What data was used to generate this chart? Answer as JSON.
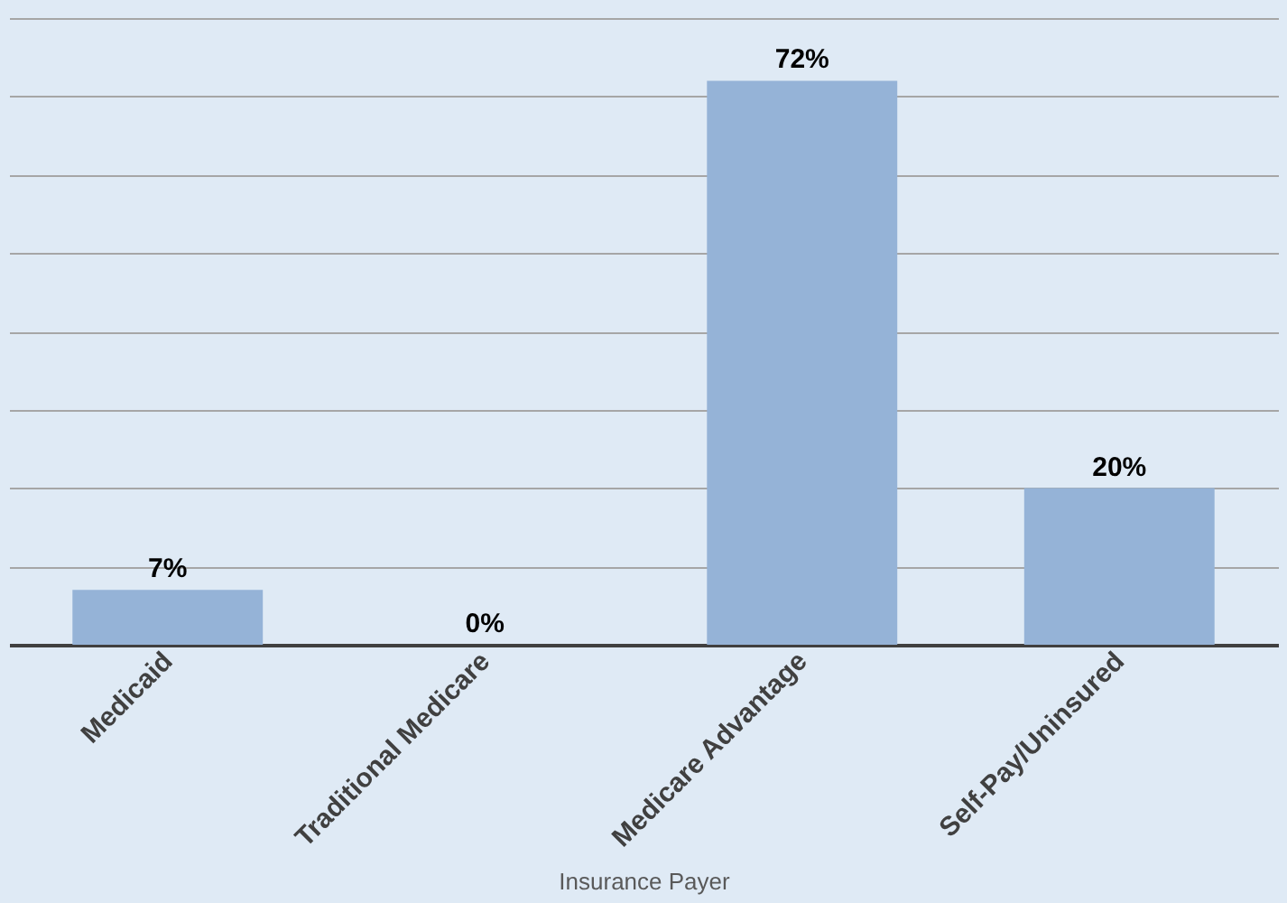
{
  "chart_data": {
    "type": "bar",
    "xlabel": "Insurance Payer",
    "categories": [
      "Medicaid",
      "Traditional Medicare",
      "Medicare Advantage",
      "Self-Pay/Uninsured"
    ],
    "values": [
      7,
      0,
      72,
      20
    ],
    "value_labels": [
      "7%",
      "0%",
      "72%",
      "20%"
    ],
    "color": "#95b3d7",
    "ylim": [
      0,
      80
    ],
    "yticks": [
      {
        "value": 0,
        "label": null
      },
      {
        "value": 10,
        "label": null
      },
      {
        "value": 20,
        "label": null
      },
      {
        "value": 30,
        "label": null
      },
      {
        "value": 40,
        "label": null
      },
      {
        "value": 50,
        "label": null
      },
      {
        "value": 60,
        "label": null
      },
      {
        "value": 70,
        "label": null
      },
      {
        "value": 80,
        "label": null
      }
    ],
    "grid": "y",
    "tick_labels": "x"
  }
}
